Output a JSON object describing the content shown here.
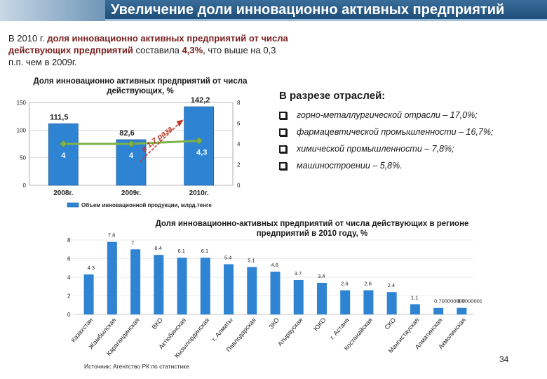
{
  "slide": {
    "title": "Увеличение доли инновационно активных предприятий",
    "intro_pre": "В 2010 г. ",
    "intro_hl": "доля инновационно активных предприятий от числа действующих предприятий",
    "intro_mid": " составила ",
    "intro_val": "4,3%",
    "intro_post": ", что выше на 0,3 п.п. чем в 2009г.",
    "page_number": "34",
    "source": "Источник: Агентство  РК по статистике"
  },
  "sectors": {
    "title": "В разрезе отраслей:",
    "items": [
      "горно-металлургической отрасли – 17,0%;",
      "фармацевтической промышленности – 16,7%;",
      "химической промышленности – 7,8%;",
      "машиностроении  – 5,8%."
    ]
  },
  "colors": {
    "bar": "#2e84d3",
    "line": "#7fb24a",
    "arrow": "#c0392b",
    "title_bg": "#1f4f7a"
  },
  "chart_data": [
    {
      "type": "bar",
      "title": "Доля инновационно активных предприятий от числа действующих, %",
      "categories": [
        "2008г.",
        "2009г.",
        "2010г."
      ],
      "series": [
        {
          "name": "Объем инновационной продукции, млрд.тенге",
          "values": [
            111.5,
            82.6,
            142.2
          ],
          "labels": [
            "111,5",
            "82,6",
            "142,2"
          ]
        },
        {
          "type": "line",
          "values": [
            4,
            4,
            4.3
          ],
          "labels": [
            "4",
            "4",
            "4,3"
          ]
        }
      ],
      "ylim": [
        0,
        150
      ],
      "y_ticks": [
        "0",
        "50",
        "100",
        "150"
      ],
      "y2lim": [
        0,
        8
      ],
      "y2_ticks": [
        "0",
        "2",
        "4",
        "6",
        "8"
      ],
      "annotation": "в 1,7 раза",
      "legend_placement": "bottom"
    },
    {
      "type": "bar",
      "title": "Доля инновационно-активных предприятий от числа действующих в регионе предприятий в 2010 году, %",
      "categories": [
        "Казахстан",
        "Жамбылская",
        "Карагандинская",
        "ВКО",
        "Актюбинская",
        "Кызылординская",
        "г. Алматы",
        "Павлодарская",
        "ЗКО",
        "Атырауская",
        "ЮКО",
        "г. Астана",
        "Костанайская",
        "СКО",
        "Мангистауская",
        "Алматинская",
        "Акмолинская"
      ],
      "values": [
        4.3,
        7.8,
        7,
        6.4,
        6.1,
        6.1,
        5.4,
        5.1,
        4.6,
        3.7,
        3.4,
        2.6,
        2.6,
        2.4,
        1.1,
        0.7,
        0.7
      ],
      "labels": [
        "4.3",
        "7.8",
        "7",
        "6.4",
        "6.1",
        "6.1",
        "5.4",
        "5.1",
        "4.6",
        "3.7",
        "3.4",
        "2.6",
        "2.6",
        "2.4",
        "1.1",
        "0.700000000000001",
        "0.7"
      ],
      "ylim": [
        0,
        8
      ],
      "y_ticks": [
        "0",
        "2",
        "4",
        "6",
        "8"
      ]
    }
  ]
}
